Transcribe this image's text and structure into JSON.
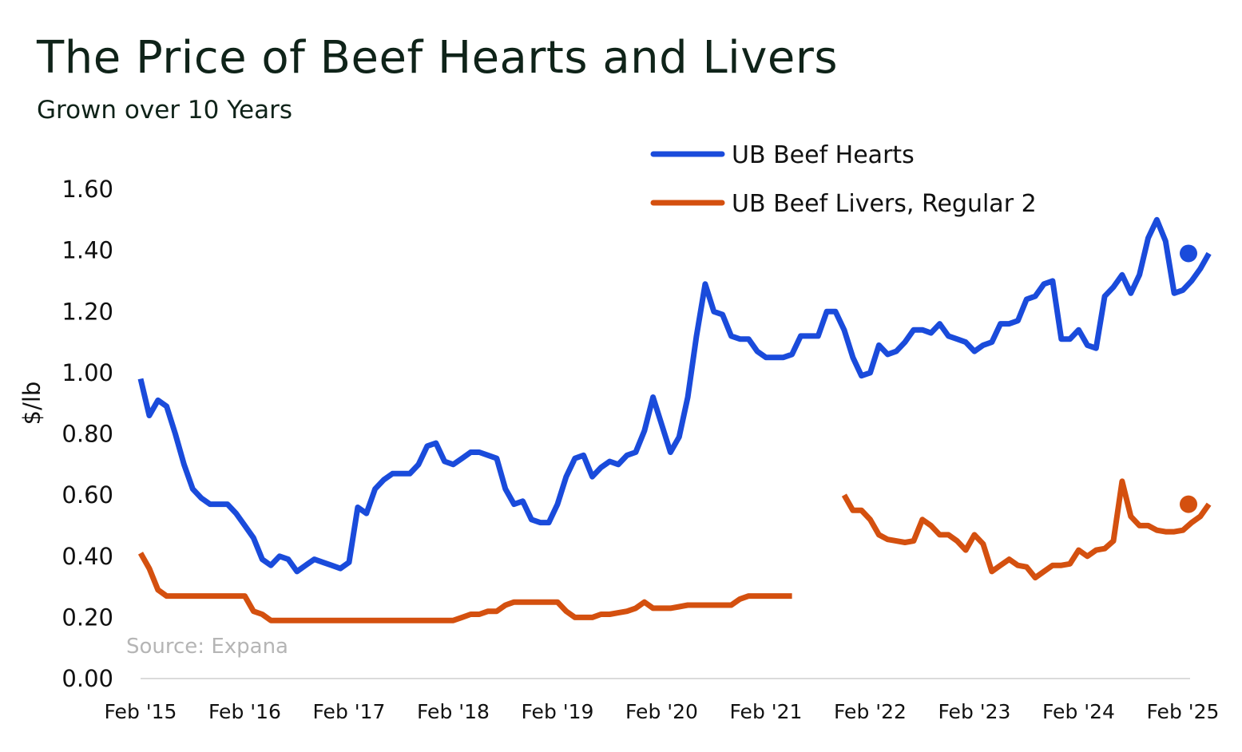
{
  "title": "The Price of Beef Hearts and Livers",
  "subtitle": "Grown over 10 Years",
  "source": "Source: Expana",
  "chart_data": {
    "type": "line",
    "title": "The Price of Beef Hearts and Livers",
    "subtitle": "Grown over 10 Years",
    "xlabel": "",
    "ylabel": "$/lb",
    "ylim": [
      0,
      1.6
    ],
    "xlim": [
      "2015-02",
      "2025-02"
    ],
    "yticks": [
      "0.00",
      "0.20",
      "0.40",
      "0.60",
      "0.80",
      "1.00",
      "1.20",
      "1.40",
      "1.60"
    ],
    "xticks": [
      "Feb '15",
      "Feb '16",
      "Feb '17",
      "Feb '18",
      "Feb '19",
      "Feb '20",
      "Feb '21",
      "Feb '22",
      "Feb '23",
      "Feb '24",
      "Feb '25"
    ],
    "grid": false,
    "legend_position": "top-right",
    "series": [
      {
        "name": "UB Beef Hearts",
        "color": "#1a4bdb",
        "end_marker": true,
        "points": [
          [
            "2015-02",
            0.98
          ],
          [
            "2015-03",
            0.86
          ],
          [
            "2015-04",
            0.91
          ],
          [
            "2015-05",
            0.89
          ],
          [
            "2015-06",
            0.8
          ],
          [
            "2015-07",
            0.7
          ],
          [
            "2015-08",
            0.62
          ],
          [
            "2015-09",
            0.59
          ],
          [
            "2015-10",
            0.57
          ],
          [
            "2015-11",
            0.57
          ],
          [
            "2015-12",
            0.57
          ],
          [
            "2016-01",
            0.54
          ],
          [
            "2016-02",
            0.5
          ],
          [
            "2016-03",
            0.46
          ],
          [
            "2016-04",
            0.39
          ],
          [
            "2016-05",
            0.37
          ],
          [
            "2016-06",
            0.4
          ],
          [
            "2016-07",
            0.39
          ],
          [
            "2016-08",
            0.35
          ],
          [
            "2016-09",
            0.37
          ],
          [
            "2016-10",
            0.39
          ],
          [
            "2016-11",
            0.38
          ],
          [
            "2016-12",
            0.37
          ],
          [
            "2017-01",
            0.36
          ],
          [
            "2017-02",
            0.38
          ],
          [
            "2017-03",
            0.56
          ],
          [
            "2017-04",
            0.54
          ],
          [
            "2017-05",
            0.62
          ],
          [
            "2017-06",
            0.65
          ],
          [
            "2017-07",
            0.67
          ],
          [
            "2017-08",
            0.67
          ],
          [
            "2017-09",
            0.67
          ],
          [
            "2017-10",
            0.7
          ],
          [
            "2017-11",
            0.76
          ],
          [
            "2017-12",
            0.77
          ],
          [
            "2018-01",
            0.71
          ],
          [
            "2018-02",
            0.7
          ],
          [
            "2018-03",
            0.72
          ],
          [
            "2018-04",
            0.74
          ],
          [
            "2018-05",
            0.74
          ],
          [
            "2018-06",
            0.73
          ],
          [
            "2018-07",
            0.72
          ],
          [
            "2018-08",
            0.62
          ],
          [
            "2018-09",
            0.57
          ],
          [
            "2018-10",
            0.58
          ],
          [
            "2018-11",
            0.52
          ],
          [
            "2018-12",
            0.51
          ],
          [
            "2019-01",
            0.51
          ],
          [
            "2019-02",
            0.57
          ],
          [
            "2019-03",
            0.66
          ],
          [
            "2019-04",
            0.72
          ],
          [
            "2019-05",
            0.73
          ],
          [
            "2019-06",
            0.66
          ],
          [
            "2019-07",
            0.69
          ],
          [
            "2019-08",
            0.71
          ],
          [
            "2019-09",
            0.7
          ],
          [
            "2019-10",
            0.73
          ],
          [
            "2019-11",
            0.74
          ],
          [
            "2019-12",
            0.81
          ],
          [
            "2020-01",
            0.92
          ],
          [
            "2020-02",
            0.83
          ],
          [
            "2020-03",
            0.74
          ],
          [
            "2020-04",
            0.79
          ],
          [
            "2020-05",
            0.92
          ],
          [
            "2020-06",
            1.12
          ],
          [
            "2020-07",
            1.29
          ],
          [
            "2020-08",
            1.2
          ],
          [
            "2020-09",
            1.19
          ],
          [
            "2020-10",
            1.12
          ],
          [
            "2020-11",
            1.11
          ],
          [
            "2020-12",
            1.11
          ],
          [
            "2021-01",
            1.07
          ],
          [
            "2021-02",
            1.05
          ],
          [
            "2021-03",
            1.05
          ],
          [
            "2021-04",
            1.05
          ],
          [
            "2021-05",
            1.06
          ],
          [
            "2021-06",
            1.12
          ],
          [
            "2021-07",
            1.12
          ],
          [
            "2021-08",
            1.12
          ],
          [
            "2021-09",
            1.2
          ],
          [
            "2021-10",
            1.2
          ],
          [
            "2021-11",
            1.14
          ],
          [
            "2021-12",
            1.05
          ],
          [
            "2022-01",
            0.99
          ],
          [
            "2022-02",
            1.0
          ],
          [
            "2022-03",
            1.09
          ],
          [
            "2022-04",
            1.06
          ],
          [
            "2022-05",
            1.07
          ],
          [
            "2022-06",
            1.1
          ],
          [
            "2022-07",
            1.14
          ],
          [
            "2022-08",
            1.14
          ],
          [
            "2022-09",
            1.13
          ],
          [
            "2022-10",
            1.16
          ],
          [
            "2022-11",
            1.12
          ],
          [
            "2022-12",
            1.11
          ],
          [
            "2023-01",
            1.1
          ],
          [
            "2023-02",
            1.07
          ],
          [
            "2023-03",
            1.09
          ],
          [
            "2023-04",
            1.1
          ],
          [
            "2023-05",
            1.16
          ],
          [
            "2023-06",
            1.16
          ],
          [
            "2023-07",
            1.17
          ],
          [
            "2023-08",
            1.24
          ],
          [
            "2023-09",
            1.25
          ],
          [
            "2023-10",
            1.29
          ],
          [
            "2023-11",
            1.3
          ],
          [
            "2023-12",
            1.11
          ],
          [
            "2024-01",
            1.11
          ],
          [
            "2024-02",
            1.14
          ],
          [
            "2024-03",
            1.09
          ],
          [
            "2024-04",
            1.08
          ],
          [
            "2024-05",
            1.25
          ],
          [
            "2024-06",
            1.28
          ],
          [
            "2024-07",
            1.32
          ],
          [
            "2024-08",
            1.26
          ],
          [
            "2024-09",
            1.32
          ],
          [
            "2024-10",
            1.44
          ],
          [
            "2024-11",
            1.5
          ],
          [
            "2024-12",
            1.43
          ],
          [
            "2025-01",
            1.26
          ],
          [
            "2025-02",
            1.27
          ],
          [
            "2025-03",
            1.3
          ],
          [
            "2025-04",
            1.34
          ],
          [
            "2025-05",
            1.39
          ]
        ]
      },
      {
        "name": "UB Beef Livers, Regular 2",
        "color": "#d4500f",
        "end_marker": true,
        "segments": [
          [
            [
              "2015-02",
              0.41
            ],
            [
              "2015-03",
              0.36
            ],
            [
              "2015-04",
              0.29
            ],
            [
              "2015-05",
              0.27
            ],
            [
              "2015-06",
              0.27
            ],
            [
              "2015-07",
              0.27
            ],
            [
              "2015-08",
              0.27
            ],
            [
              "2015-09",
              0.27
            ],
            [
              "2015-10",
              0.27
            ],
            [
              "2015-11",
              0.27
            ],
            [
              "2015-12",
              0.27
            ],
            [
              "2016-01",
              0.27
            ],
            [
              "2016-02",
              0.27
            ],
            [
              "2016-03",
              0.22
            ],
            [
              "2016-04",
              0.21
            ],
            [
              "2016-05",
              0.19
            ],
            [
              "2016-06",
              0.19
            ],
            [
              "2016-07",
              0.19
            ],
            [
              "2016-08",
              0.19
            ],
            [
              "2016-09",
              0.19
            ],
            [
              "2016-10",
              0.19
            ],
            [
              "2016-11",
              0.19
            ],
            [
              "2016-12",
              0.19
            ],
            [
              "2017-01",
              0.19
            ],
            [
              "2017-02",
              0.19
            ],
            [
              "2017-03",
              0.19
            ],
            [
              "2017-04",
              0.19
            ],
            [
              "2017-05",
              0.19
            ],
            [
              "2017-06",
              0.19
            ],
            [
              "2017-07",
              0.19
            ],
            [
              "2017-08",
              0.19
            ],
            [
              "2017-09",
              0.19
            ],
            [
              "2017-10",
              0.19
            ],
            [
              "2017-11",
              0.19
            ],
            [
              "2017-12",
              0.19
            ],
            [
              "2018-01",
              0.19
            ],
            [
              "2018-02",
              0.19
            ],
            [
              "2018-03",
              0.2
            ],
            [
              "2018-04",
              0.21
            ],
            [
              "2018-05",
              0.21
            ],
            [
              "2018-06",
              0.22
            ],
            [
              "2018-07",
              0.22
            ],
            [
              "2018-08",
              0.24
            ],
            [
              "2018-09",
              0.25
            ],
            [
              "2018-10",
              0.25
            ],
            [
              "2018-11",
              0.25
            ],
            [
              "2018-12",
              0.25
            ],
            [
              "2019-01",
              0.25
            ],
            [
              "2019-02",
              0.25
            ],
            [
              "2019-03",
              0.22
            ],
            [
              "2019-04",
              0.2
            ],
            [
              "2019-05",
              0.2
            ],
            [
              "2019-06",
              0.2
            ],
            [
              "2019-07",
              0.21
            ],
            [
              "2019-08",
              0.21
            ],
            [
              "2019-09",
              0.215
            ],
            [
              "2019-10",
              0.22
            ],
            [
              "2019-11",
              0.23
            ],
            [
              "2019-12",
              0.25
            ],
            [
              "2020-01",
              0.23
            ],
            [
              "2020-02",
              0.23
            ],
            [
              "2020-03",
              0.23
            ],
            [
              "2020-04",
              0.235
            ],
            [
              "2020-05",
              0.24
            ],
            [
              "2020-06",
              0.24
            ],
            [
              "2020-07",
              0.24
            ],
            [
              "2020-08",
              0.24
            ],
            [
              "2020-09",
              0.24
            ],
            [
              "2020-10",
              0.24
            ],
            [
              "2020-11",
              0.26
            ],
            [
              "2020-12",
              0.27
            ],
            [
              "2021-01",
              0.27
            ],
            [
              "2021-02",
              0.27
            ],
            [
              "2021-03",
              0.27
            ],
            [
              "2021-04",
              0.27
            ],
            [
              "2021-05",
              0.27
            ]
          ],
          [
            [
              "2021-11",
              0.6
            ],
            [
              "2021-12",
              0.55
            ],
            [
              "2022-01",
              0.55
            ],
            [
              "2022-02",
              0.52
            ],
            [
              "2022-03",
              0.47
            ],
            [
              "2022-04",
              0.455
            ],
            [
              "2022-05",
              0.45
            ],
            [
              "2022-06",
              0.445
            ],
            [
              "2022-07",
              0.45
            ],
            [
              "2022-08",
              0.52
            ],
            [
              "2022-09",
              0.5
            ],
            [
              "2022-10",
              0.47
            ],
            [
              "2022-11",
              0.47
            ],
            [
              "2022-12",
              0.45
            ],
            [
              "2023-01",
              0.42
            ],
            [
              "2023-02",
              0.47
            ],
            [
              "2023-03",
              0.44
            ],
            [
              "2023-04",
              0.35
            ],
            [
              "2023-05",
              0.37
            ],
            [
              "2023-06",
              0.39
            ],
            [
              "2023-07",
              0.37
            ],
            [
              "2023-08",
              0.365
            ],
            [
              "2023-09",
              0.33
            ],
            [
              "2023-10",
              0.35
            ],
            [
              "2023-11",
              0.37
            ],
            [
              "2023-12",
              0.37
            ],
            [
              "2024-01",
              0.375
            ],
            [
              "2024-02",
              0.42
            ],
            [
              "2024-03",
              0.4
            ],
            [
              "2024-04",
              0.42
            ],
            [
              "2024-05",
              0.425
            ],
            [
              "2024-06",
              0.45
            ],
            [
              "2024-07",
              0.645
            ],
            [
              "2024-08",
              0.53
            ],
            [
              "2024-09",
              0.5
            ],
            [
              "2024-10",
              0.5
            ],
            [
              "2024-11",
              0.485
            ],
            [
              "2024-12",
              0.48
            ],
            [
              "2025-01",
              0.48
            ],
            [
              "2025-02",
              0.485
            ],
            [
              "2025-03",
              0.51
            ],
            [
              "2025-04",
              0.53
            ],
            [
              "2025-05",
              0.57
            ]
          ]
        ]
      }
    ]
  }
}
